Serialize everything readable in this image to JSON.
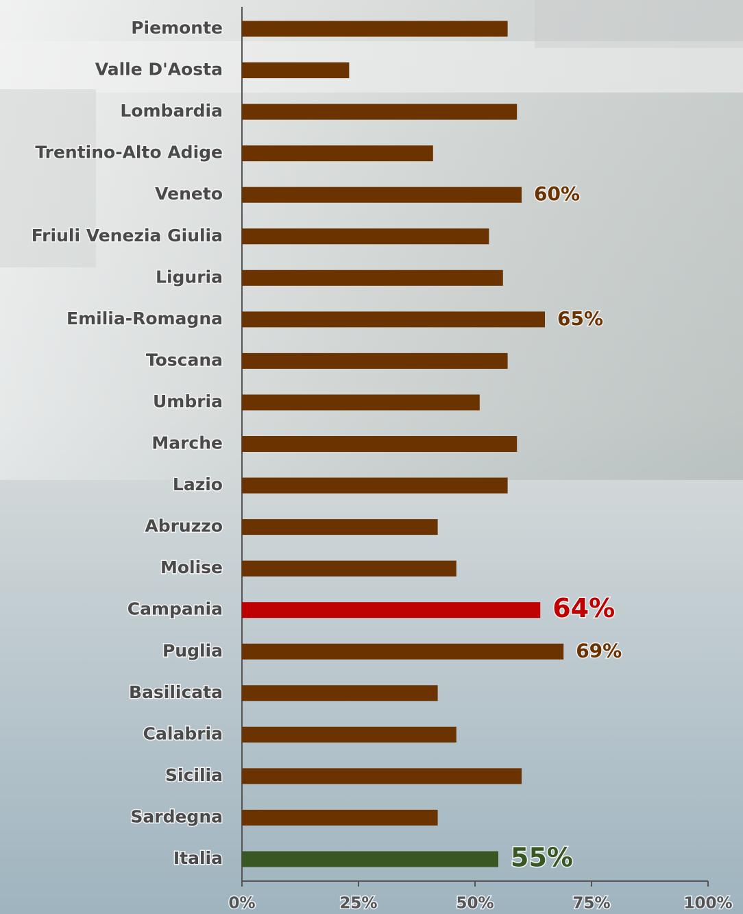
{
  "chart_data": {
    "type": "barh",
    "categories": [
      "Piemonte",
      "Valle D'Aosta",
      "Lombardia",
      "Trentino-Alto Adige",
      "Veneto",
      "Friuli Venezia Giulia",
      "Liguria",
      "Emilia-Romagna",
      "Toscana",
      "Umbria",
      "Marche",
      "Lazio",
      "Abruzzo",
      "Molise",
      "Campania",
      "Puglia",
      "Basilicata",
      "Calabria",
      "Sicilia",
      "Sardegna",
      "Italia"
    ],
    "values": [
      57,
      23,
      59,
      41,
      60,
      53,
      56,
      65,
      57,
      51,
      59,
      57,
      42,
      46,
      64,
      69,
      42,
      46,
      60,
      42,
      55
    ],
    "value_labels": [
      null,
      null,
      null,
      null,
      "60%",
      null,
      null,
      "65%",
      null,
      null,
      null,
      null,
      null,
      null,
      "64%",
      "69%",
      null,
      null,
      null,
      null,
      "55%"
    ],
    "colors": [
      "#6b3300",
      "#6b3300",
      "#6b3300",
      "#6b3300",
      "#6b3300",
      "#6b3300",
      "#6b3300",
      "#6b3300",
      "#6b3300",
      "#6b3300",
      "#6b3300",
      "#6b3300",
      "#6b3300",
      "#6b3300",
      "#c00000",
      "#6b3300",
      "#6b3300",
      "#6b3300",
      "#6b3300",
      "#6b3300",
      "#385723"
    ],
    "xlim": [
      0,
      100
    ],
    "xticks": [
      {
        "value": 0,
        "label": "0%"
      },
      {
        "value": 25,
        "label": "25%"
      },
      {
        "value": 50,
        "label": "50%"
      },
      {
        "value": 75,
        "label": "75%"
      },
      {
        "value": 100,
        "label": "100%"
      }
    ]
  }
}
